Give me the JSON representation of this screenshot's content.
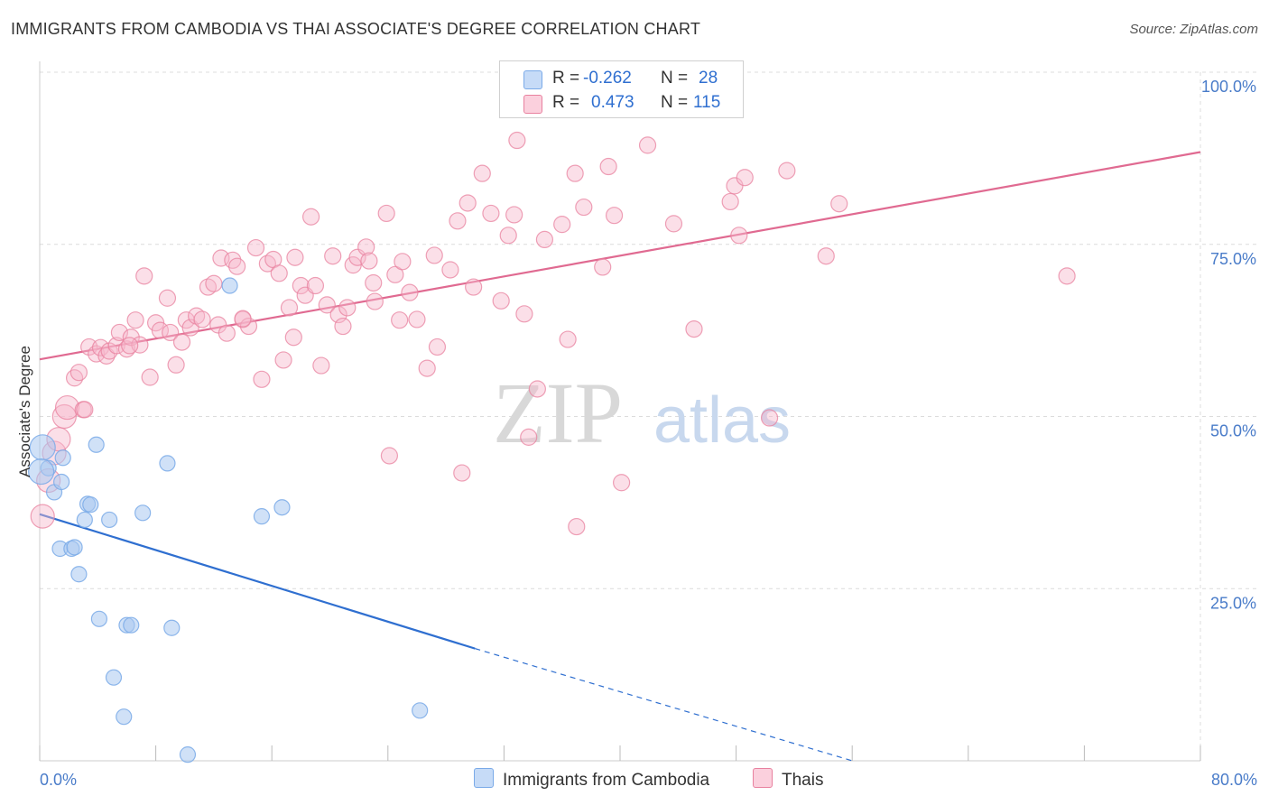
{
  "header": {
    "title": "IMMIGRANTS FROM CAMBODIA VS THAI ASSOCIATE'S DEGREE CORRELATION CHART",
    "source": "Source: ZipAtlas.com"
  },
  "watermark": {
    "zip": "ZIP",
    "atlas": "atlas"
  },
  "legend": {
    "rows": [
      {
        "r_label": "R =",
        "r_value": "-0.262",
        "n_label": "N =",
        "n_value": "28",
        "color": "#a9c8f0"
      },
      {
        "r_label": "R =",
        "r_value": "0.473",
        "n_label": "N =",
        "n_value": "115",
        "color": "#f7b8cb"
      }
    ]
  },
  "bottom_legend": [
    {
      "label": "Immigrants from Cambodia",
      "color": "#a9c8f0"
    },
    {
      "label": "Thais",
      "color": "#f7b8cb"
    }
  ],
  "chart_data": {
    "type": "scatter",
    "title": "IMMIGRANTS FROM CAMBODIA VS THAI ASSOCIATE'S DEGREE CORRELATION CHART",
    "xlabel": "",
    "ylabel": "Associate's Degree",
    "xlim": [
      0,
      80
    ],
    "ylim": [
      0,
      100
    ],
    "x_tick_labels": [
      "0.0%",
      "80.0%"
    ],
    "y_tick_labels": [
      "25.0%",
      "50.0%",
      "75.0%",
      "100.0%"
    ],
    "y_ticks": [
      25,
      50,
      75,
      100
    ],
    "grid": true,
    "legend_position": "top-center",
    "series": [
      {
        "name": "Immigrants from Cambodia",
        "color": "#7aaae8",
        "fill": "#a9c8f0",
        "points": [
          [
            0.2,
            45.5
          ],
          [
            0.6,
            42.5
          ],
          [
            1.0,
            39.0
          ],
          [
            1.6,
            44.0
          ],
          [
            1.5,
            40.5
          ],
          [
            3.9,
            45.9
          ],
          [
            8.8,
            43.2
          ],
          [
            13.1,
            69.0
          ],
          [
            1.4,
            30.8
          ],
          [
            2.2,
            30.8
          ],
          [
            2.4,
            31.0
          ],
          [
            3.1,
            35.0
          ],
          [
            3.3,
            37.3
          ],
          [
            3.5,
            37.2
          ],
          [
            4.8,
            35.0
          ],
          [
            7.1,
            36.0
          ],
          [
            15.3,
            35.5
          ],
          [
            16.7,
            36.8
          ],
          [
            2.7,
            27.1
          ],
          [
            4.1,
            20.6
          ],
          [
            6.0,
            19.7
          ],
          [
            6.3,
            19.7
          ],
          [
            9.1,
            19.3
          ],
          [
            5.1,
            12.1
          ],
          [
            5.8,
            6.4
          ],
          [
            26.2,
            7.3
          ],
          [
            10.2,
            0.9
          ],
          [
            0.1,
            42.0
          ]
        ],
        "trend": {
          "x0": 0,
          "y0": 35.8,
          "x1": 30,
          "y1": 16.3,
          "dashed_to_x": 56,
          "dashed_to_y": 0
        }
      },
      {
        "name": "Thais",
        "color": "#e8819f",
        "fill": "#f7b8cb",
        "points": [
          [
            0.2,
            35.5
          ],
          [
            0.6,
            40.7
          ],
          [
            1.0,
            44.7
          ],
          [
            1.3,
            46.7
          ],
          [
            1.7,
            50.0
          ],
          [
            1.9,
            51.3
          ],
          [
            3.0,
            51.0
          ],
          [
            2.4,
            55.6
          ],
          [
            2.7,
            56.4
          ],
          [
            3.4,
            60.1
          ],
          [
            3.9,
            59.1
          ],
          [
            4.2,
            60.0
          ],
          [
            4.6,
            58.8
          ],
          [
            4.8,
            59.5
          ],
          [
            5.3,
            60.3
          ],
          [
            5.5,
            62.2
          ],
          [
            6.0,
            59.8
          ],
          [
            6.3,
            61.5
          ],
          [
            6.6,
            64.0
          ],
          [
            6.9,
            60.4
          ],
          [
            7.2,
            70.4
          ],
          [
            7.6,
            55.7
          ],
          [
            8.0,
            63.6
          ],
          [
            8.3,
            62.5
          ],
          [
            8.8,
            67.2
          ],
          [
            9.0,
            62.2
          ],
          [
            9.4,
            57.5
          ],
          [
            9.8,
            60.8
          ],
          [
            10.1,
            64.0
          ],
          [
            10.4,
            62.9
          ],
          [
            10.8,
            64.6
          ],
          [
            11.2,
            64.1
          ],
          [
            11.6,
            68.8
          ],
          [
            12.0,
            69.3
          ],
          [
            12.3,
            63.3
          ],
          [
            12.5,
            73.0
          ],
          [
            12.9,
            62.1
          ],
          [
            13.3,
            72.7
          ],
          [
            13.6,
            71.8
          ],
          [
            14.0,
            64.1
          ],
          [
            14.4,
            63.1
          ],
          [
            14.9,
            74.5
          ],
          [
            15.3,
            55.4
          ],
          [
            15.7,
            72.2
          ],
          [
            16.1,
            72.8
          ],
          [
            16.5,
            70.8
          ],
          [
            16.8,
            58.2
          ],
          [
            17.2,
            65.8
          ],
          [
            17.6,
            73.1
          ],
          [
            18.0,
            69.0
          ],
          [
            18.3,
            67.6
          ],
          [
            18.7,
            79.0
          ],
          [
            19.0,
            69.0
          ],
          [
            19.4,
            57.4
          ],
          [
            19.8,
            66.2
          ],
          [
            20.2,
            73.3
          ],
          [
            20.6,
            64.8
          ],
          [
            20.9,
            63.1
          ],
          [
            21.2,
            65.8
          ],
          [
            21.6,
            72.0
          ],
          [
            21.9,
            73.1
          ],
          [
            22.5,
            74.6
          ],
          [
            22.7,
            72.6
          ],
          [
            23.0,
            69.4
          ],
          [
            23.1,
            66.7
          ],
          [
            23.9,
            79.5
          ],
          [
            24.1,
            44.3
          ],
          [
            24.5,
            70.6
          ],
          [
            24.8,
            64.0
          ],
          [
            25.0,
            72.5
          ],
          [
            25.5,
            68.0
          ],
          [
            26.0,
            64.1
          ],
          [
            26.7,
            57.0
          ],
          [
            27.2,
            73.4
          ],
          [
            27.4,
            60.1
          ],
          [
            28.3,
            71.3
          ],
          [
            28.8,
            78.4
          ],
          [
            29.1,
            41.8
          ],
          [
            29.5,
            81.0
          ],
          [
            29.9,
            68.8
          ],
          [
            30.5,
            85.3
          ],
          [
            31.1,
            79.5
          ],
          [
            31.8,
            66.8
          ],
          [
            32.3,
            76.3
          ],
          [
            32.7,
            79.3
          ],
          [
            32.9,
            90.1
          ],
          [
            33.4,
            64.9
          ],
          [
            33.7,
            47.0
          ],
          [
            34.3,
            54.0
          ],
          [
            34.8,
            75.7
          ],
          [
            36.0,
            77.9
          ],
          [
            36.4,
            61.2
          ],
          [
            36.9,
            85.3
          ],
          [
            37.0,
            34.0
          ],
          [
            37.5,
            80.4
          ],
          [
            38.8,
            71.7
          ],
          [
            39.2,
            86.3
          ],
          [
            39.6,
            79.2
          ],
          [
            40.1,
            40.4
          ],
          [
            41.9,
            89.4
          ],
          [
            43.7,
            78.0
          ],
          [
            45.1,
            62.7
          ],
          [
            47.6,
            81.2
          ],
          [
            47.9,
            83.5
          ],
          [
            48.2,
            76.3
          ],
          [
            48.6,
            84.7
          ],
          [
            50.3,
            49.8
          ],
          [
            51.5,
            85.7
          ],
          [
            54.2,
            73.3
          ],
          [
            55.1,
            80.9
          ],
          [
            70.8,
            70.4
          ],
          [
            14.0,
            64.2
          ],
          [
            17.5,
            61.5
          ],
          [
            6.2,
            60.3
          ],
          [
            3.1,
            51.0
          ]
        ],
        "trend": {
          "x0": 0,
          "y0": 58.3,
          "x1": 80,
          "y1": 88.4
        }
      }
    ]
  }
}
